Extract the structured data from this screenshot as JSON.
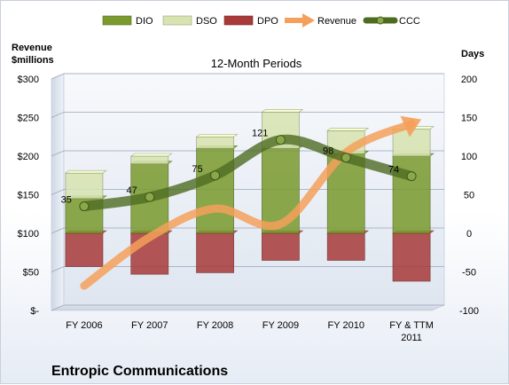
{
  "chart_data": {
    "type": "bar",
    "title": "12-Month Periods",
    "footer": "Entropic Communications",
    "left_axis_label": [
      "Revenue",
      "$millions"
    ],
    "right_axis_label": "Days",
    "categories": [
      "FY 2006",
      "FY 2007",
      "FY 2008",
      "FY 2009",
      "FY 2010",
      "FY & TTM 2011"
    ],
    "left_axis": {
      "min": 0,
      "max": 300,
      "step": 50,
      "ticks": [
        "$-",
        "$50",
        "$100",
        "$150",
        "$200",
        "$250",
        "$300"
      ]
    },
    "right_axis": {
      "min": -100,
      "max": 200,
      "step": 50,
      "ticks": [
        "-100",
        "-50",
        "0",
        "50",
        "100",
        "150",
        "200"
      ]
    },
    "series": [
      {
        "name": "DIO",
        "axis": "right",
        "kind": "stacked-bar",
        "color": "#7a9a2e",
        "values": [
          45,
          90,
          110,
          110,
          103,
          100
        ]
      },
      {
        "name": "DSO",
        "axis": "right",
        "kind": "stacked-bar",
        "color": "#d7e4b0",
        "values": [
          33,
          10,
          15,
          47,
          30,
          35
        ]
      },
      {
        "name": "DPO",
        "axis": "right",
        "kind": "negative-bar",
        "color": "#a83a3a",
        "values": [
          -43,
          -53,
          -51,
          -35,
          -35,
          -62
        ]
      },
      {
        "name": "Revenue",
        "axis": "left",
        "kind": "line",
        "color": "#f5a05a",
        "values": [
          32,
          95,
          132,
          112,
          205,
          242
        ]
      },
      {
        "name": "CCC",
        "axis": "right",
        "kind": "line",
        "color": "#4e6b22",
        "values": [
          35,
          47,
          75,
          121,
          98,
          74
        ],
        "labels": [
          "35",
          "47",
          "75",
          "121",
          "98",
          "74"
        ]
      }
    ],
    "legend_position": "top",
    "grid": true
  }
}
